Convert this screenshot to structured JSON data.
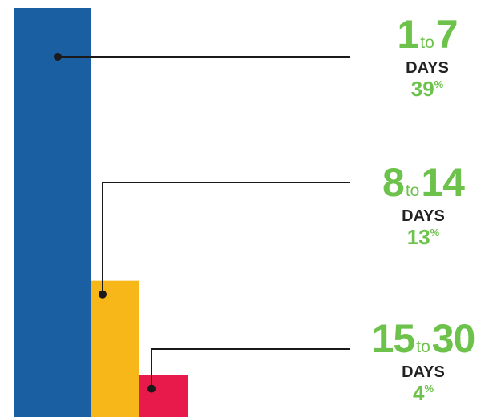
{
  "chart_data": {
    "type": "bar",
    "categories": [
      "1 to 7 DAYS",
      "8 to 14 DAYS",
      "15 to 30 DAYS"
    ],
    "values": [
      39,
      13,
      4
    ],
    "unit": "%",
    "ylim": [
      0,
      39
    ],
    "colors": [
      "#1b5fa3",
      "#f7b718",
      "#e8194b"
    ],
    "annotations": [
      {
        "from": "1",
        "to_word": "to",
        "to": "7",
        "days": "DAYS",
        "pct": "39",
        "pct_unit": "%"
      },
      {
        "from": "8",
        "to_word": "to",
        "to": "14",
        "days": "DAYS",
        "pct": "13",
        "pct_unit": "%"
      },
      {
        "from": "15",
        "to_word": "to",
        "to": "30",
        "days": "DAYS",
        "pct": "4",
        "pct_unit": "%"
      }
    ]
  }
}
